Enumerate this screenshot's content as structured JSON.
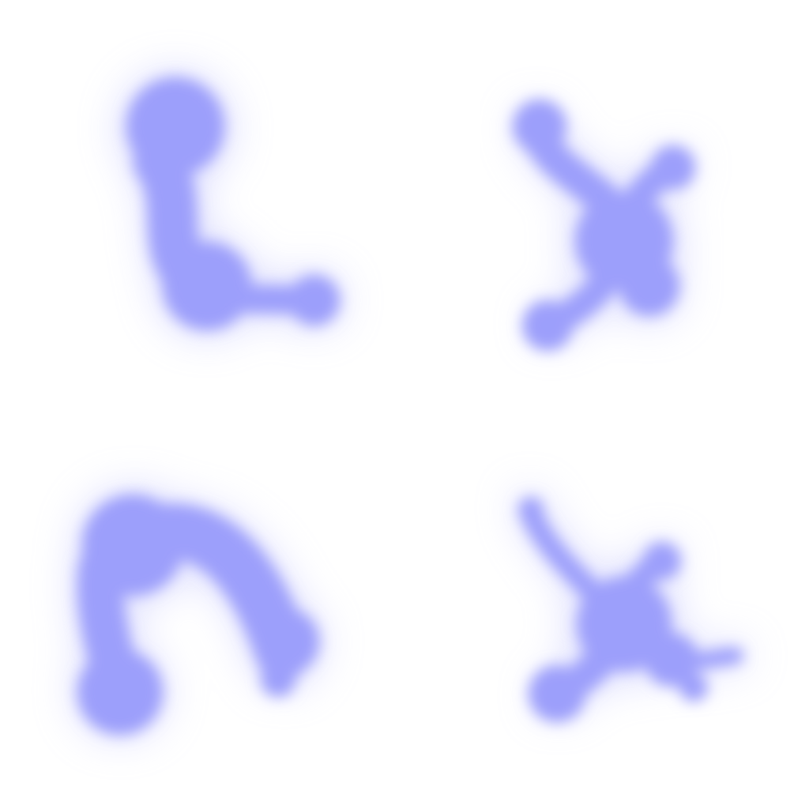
{
  "background": "#ffffff",
  "blob_color": "#9c9ffb",
  "glow_color": "#b9bbfd",
  "blobs": [
    {
      "name": "blob-top-left",
      "shape": "hook"
    },
    {
      "name": "blob-top-right",
      "shape": "four-arm"
    },
    {
      "name": "blob-bottom-left",
      "shape": "arch"
    },
    {
      "name": "blob-bottom-right",
      "shape": "splat"
    }
  ]
}
